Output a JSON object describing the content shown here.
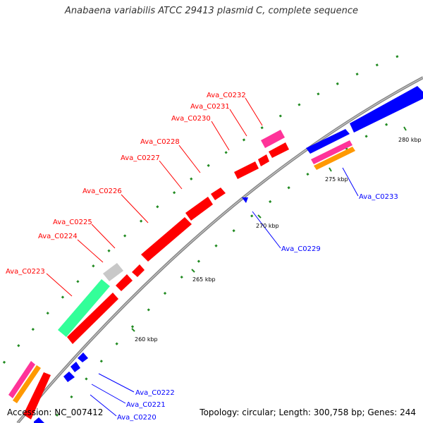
{
  "title": "Anabaena variabilis ATCC 29413 plasmid C, complete sequence",
  "footer": {
    "accession": "Accession: NC_007412",
    "topology": "Topology: circular; Length: 300,758 bp; Genes: 244"
  },
  "ticks": [
    {
      "label": "260 kbp"
    },
    {
      "label": "265 kbp"
    },
    {
      "label": "270 kbp"
    },
    {
      "label": "275 kbp"
    },
    {
      "label": "280 kbp"
    }
  ],
  "genes_forward": [
    {
      "name": "Ava_C0223"
    },
    {
      "name": "Ava_C0224"
    },
    {
      "name": "Ava_C0225"
    },
    {
      "name": "Ava_C0226"
    },
    {
      "name": "Ava_C0227"
    },
    {
      "name": "Ava_C0228"
    },
    {
      "name": "Ava_C0230"
    },
    {
      "name": "Ava_C0231"
    },
    {
      "name": "Ava_C0232"
    }
  ],
  "genes_reverse": [
    {
      "name": "Ava_C0220"
    },
    {
      "name": "Ava_C0221"
    },
    {
      "name": "Ava_C0222"
    },
    {
      "name": "Ava_C0229"
    },
    {
      "name": "Ava_C0233"
    }
  ],
  "colors": {
    "forward_cds": "#ff0000",
    "reverse_cds": "#0000ff",
    "backbone": "#808080",
    "tick": "#228b22",
    "teal_feature": "#33ff99",
    "gray_feature": "#c8c8c8",
    "pink_feature": "#ff3399",
    "orange_feature": "#ff9900"
  }
}
